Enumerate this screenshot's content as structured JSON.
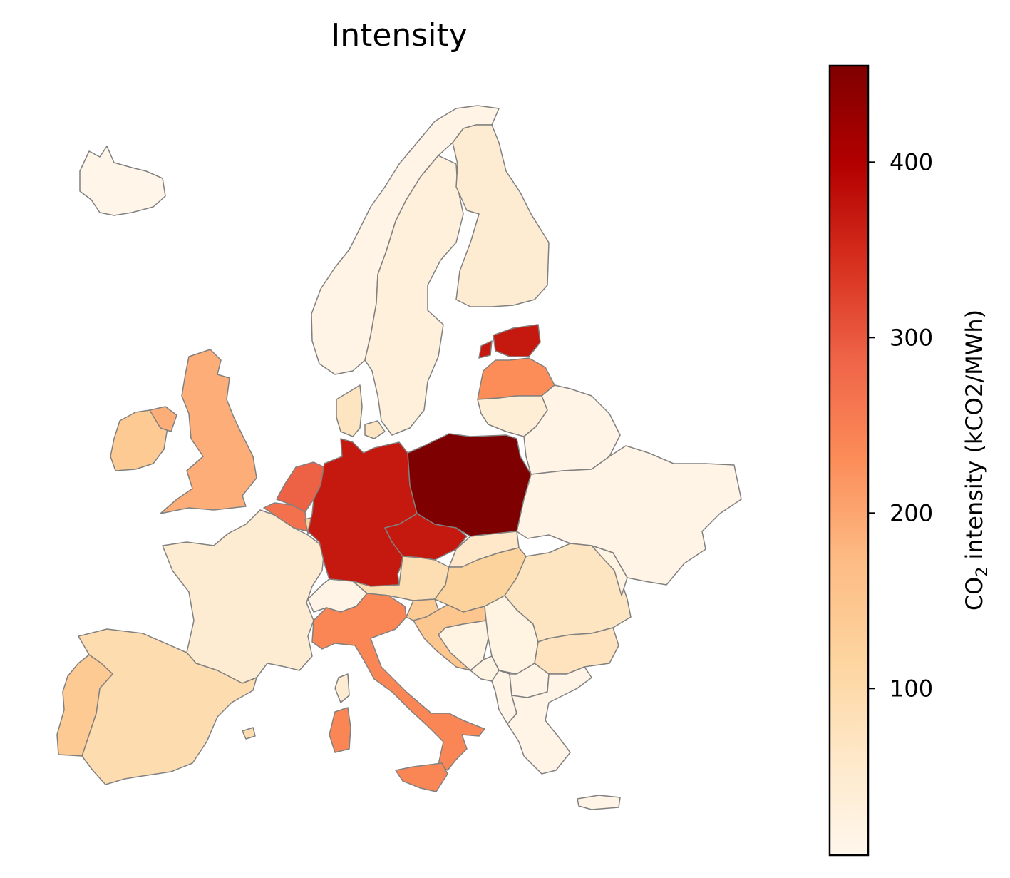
{
  "title": "Intensity",
  "colorbar": {
    "label_prefix": "CO",
    "label_subscript": "2",
    "label_suffix": " intensity (kCO2/MWh)",
    "ticks": [
      "100",
      "200",
      "300",
      "400"
    ],
    "tick_values": [
      100,
      200,
      300,
      400
    ],
    "range": [
      5,
      455
    ],
    "colormap": "OrRd"
  },
  "chart_data": {
    "type": "choropleth",
    "title": "Intensity",
    "colorbar_label": "CO2 intensity (kCO2/MWh)",
    "value_range": [
      5,
      455
    ],
    "regions": [
      {
        "name": "Iceland",
        "value": 10
      },
      {
        "name": "Norway",
        "value": 15
      },
      {
        "name": "Sweden",
        "value": 30
      },
      {
        "name": "Finland",
        "value": 45
      },
      {
        "name": "Estonia",
        "value": 370
      },
      {
        "name": "Latvia",
        "value": 230
      },
      {
        "name": "Lithuania",
        "value": 40
      },
      {
        "name": "Belarus",
        "value": 15
      },
      {
        "name": "Ukraine",
        "value": 15
      },
      {
        "name": "Denmark",
        "value": 70
      },
      {
        "name": "Ireland",
        "value": 140
      },
      {
        "name": "United Kingdom",
        "value": 190
      },
      {
        "name": "Netherlands",
        "value": 290
      },
      {
        "name": "Belgium",
        "value": 270
      },
      {
        "name": "Luxembourg",
        "value": 120
      },
      {
        "name": "Germany",
        "value": 370
      },
      {
        "name": "Poland",
        "value": 455
      },
      {
        "name": "Czech Republic",
        "value": 370
      },
      {
        "name": "Slovakia",
        "value": 60
      },
      {
        "name": "Austria",
        "value": 90
      },
      {
        "name": "Switzerland",
        "value": 15
      },
      {
        "name": "Hungary",
        "value": 120
      },
      {
        "name": "Slovenia",
        "value": 140
      },
      {
        "name": "Croatia",
        "value": 150
      },
      {
        "name": "Bosnia and Herzegovina",
        "value": 20
      },
      {
        "name": "Serbia",
        "value": 20
      },
      {
        "name": "Montenegro",
        "value": 20
      },
      {
        "name": "Albania",
        "value": 15
      },
      {
        "name": "North Macedonia",
        "value": 15
      },
      {
        "name": "Romania",
        "value": 70
      },
      {
        "name": "Moldova",
        "value": 20
      },
      {
        "name": "Bulgaria",
        "value": 75
      },
      {
        "name": "Greece",
        "value": 15
      },
      {
        "name": "France",
        "value": 45
      },
      {
        "name": "Spain",
        "value": 95
      },
      {
        "name": "Portugal",
        "value": 140
      },
      {
        "name": "Italy",
        "value": 240
      },
      {
        "name": "Sardinia",
        "value": 240
      },
      {
        "name": "Sicily",
        "value": 240
      },
      {
        "name": "Corsica",
        "value": 45
      }
    ]
  }
}
